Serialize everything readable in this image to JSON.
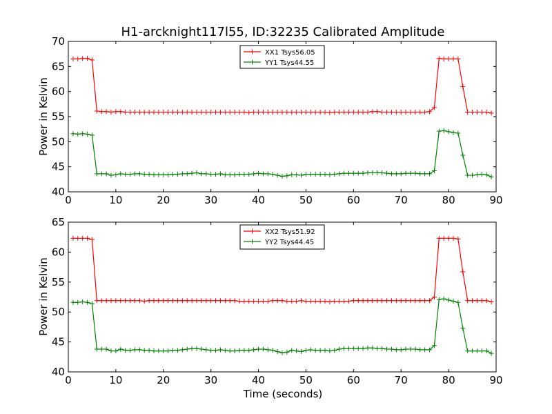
{
  "chart_data": [
    {
      "type": "line",
      "title": "H1-arcknight117l55, ID:32235 Calibrated Amplitude",
      "xlabel": "",
      "ylabel": "Power in Kelvin",
      "xlim": [
        0,
        90
      ],
      "ylim": [
        40,
        70
      ],
      "xticks": [
        0,
        10,
        20,
        30,
        40,
        50,
        60,
        70,
        80,
        90
      ],
      "yticks": [
        40,
        45,
        50,
        55,
        60,
        65,
        70
      ],
      "legend_position": "top-center",
      "marker": "plus",
      "series": [
        {
          "name": "XX1 Tsys56.05",
          "color": "#ff0000",
          "x": [
            1,
            2,
            3,
            4,
            5,
            6,
            7,
            8,
            9,
            10,
            11,
            12,
            13,
            14,
            15,
            16,
            17,
            18,
            19,
            20,
            21,
            22,
            23,
            24,
            25,
            26,
            27,
            28,
            29,
            30,
            31,
            32,
            33,
            34,
            35,
            36,
            37,
            38,
            39,
            40,
            41,
            42,
            43,
            44,
            45,
            46,
            47,
            48,
            49,
            50,
            51,
            52,
            53,
            54,
            55,
            56,
            57,
            58,
            59,
            60,
            61,
            62,
            63,
            64,
            65,
            66,
            67,
            68,
            69,
            70,
            71,
            72,
            73,
            74,
            75,
            76,
            77,
            78,
            79,
            80,
            81,
            82,
            83,
            84,
            85,
            86,
            87,
            88,
            89
          ],
          "y": [
            66.5,
            66.5,
            66.6,
            66.6,
            66.3,
            56.1,
            56.0,
            56.0,
            55.9,
            56.0,
            56.0,
            55.9,
            55.9,
            55.9,
            55.9,
            55.9,
            55.9,
            55.9,
            55.9,
            55.9,
            55.9,
            55.9,
            55.9,
            55.9,
            55.9,
            55.9,
            55.9,
            55.9,
            55.9,
            55.9,
            55.9,
            55.9,
            55.9,
            55.9,
            55.9,
            55.9,
            55.9,
            55.8,
            55.9,
            55.9,
            55.9,
            55.9,
            55.9,
            55.9,
            55.9,
            55.9,
            55.9,
            55.9,
            55.9,
            55.9,
            55.9,
            55.9,
            55.9,
            55.9,
            55.8,
            55.9,
            55.9,
            55.9,
            55.9,
            55.9,
            55.9,
            55.9,
            55.9,
            56.0,
            56.0,
            55.9,
            55.9,
            55.9,
            55.9,
            55.9,
            55.9,
            55.9,
            55.9,
            55.9,
            55.9,
            56.0,
            56.8,
            66.6,
            66.5,
            66.5,
            66.5,
            66.5,
            61.0,
            55.9,
            55.9,
            55.9,
            55.9,
            55.9,
            55.7
          ]
        },
        {
          "name": "YY1 Tsys44.55",
          "color": "#008000",
          "x": [
            1,
            2,
            3,
            4,
            5,
            6,
            7,
            8,
            9,
            10,
            11,
            12,
            13,
            14,
            15,
            16,
            17,
            18,
            19,
            20,
            21,
            22,
            23,
            24,
            25,
            26,
            27,
            28,
            29,
            30,
            31,
            32,
            33,
            34,
            35,
            36,
            37,
            38,
            39,
            40,
            41,
            42,
            43,
            44,
            45,
            46,
            47,
            48,
            49,
            50,
            51,
            52,
            53,
            54,
            55,
            56,
            57,
            58,
            59,
            60,
            61,
            62,
            63,
            64,
            65,
            66,
            67,
            68,
            69,
            70,
            71,
            72,
            73,
            74,
            75,
            76,
            77,
            78,
            79,
            80,
            81,
            82,
            83,
            84,
            85,
            86,
            87,
            88,
            89
          ],
          "y": [
            51.6,
            51.5,
            51.6,
            51.5,
            51.3,
            43.6,
            43.6,
            43.6,
            43.3,
            43.4,
            43.6,
            43.5,
            43.5,
            43.6,
            43.6,
            43.5,
            43.5,
            43.4,
            43.4,
            43.4,
            43.4,
            43.5,
            43.5,
            43.6,
            43.6,
            43.7,
            43.8,
            43.6,
            43.6,
            43.5,
            43.5,
            43.6,
            43.4,
            43.4,
            43.4,
            43.5,
            43.5,
            43.5,
            43.6,
            43.7,
            43.6,
            43.6,
            43.5,
            43.3,
            43.1,
            43.2,
            43.4,
            43.4,
            43.3,
            43.5,
            43.5,
            43.5,
            43.5,
            43.5,
            43.4,
            43.5,
            43.6,
            43.7,
            43.7,
            43.7,
            43.7,
            43.7,
            43.8,
            43.8,
            43.8,
            43.8,
            43.7,
            43.6,
            43.6,
            43.6,
            43.7,
            43.7,
            43.7,
            43.6,
            43.6,
            43.6,
            44.2,
            52.1,
            52.2,
            52.0,
            51.8,
            51.7,
            47.3,
            43.3,
            43.3,
            43.4,
            43.5,
            43.4,
            43.0
          ]
        }
      ]
    },
    {
      "type": "line",
      "title": "",
      "xlabel": "Time (seconds)",
      "ylabel": "Power in Kelvin",
      "xlim": [
        0,
        90
      ],
      "ylim": [
        40,
        65
      ],
      "xticks": [
        0,
        10,
        20,
        30,
        40,
        50,
        60,
        70,
        80,
        90
      ],
      "yticks": [
        40,
        45,
        50,
        55,
        60,
        65
      ],
      "legend_position": "top-center",
      "marker": "plus",
      "series": [
        {
          "name": "XX2 Tsys51.92",
          "color": "#ff0000",
          "x": [
            1,
            2,
            3,
            4,
            5,
            6,
            7,
            8,
            9,
            10,
            11,
            12,
            13,
            14,
            15,
            16,
            17,
            18,
            19,
            20,
            21,
            22,
            23,
            24,
            25,
            26,
            27,
            28,
            29,
            30,
            31,
            32,
            33,
            34,
            35,
            36,
            37,
            38,
            39,
            40,
            41,
            42,
            43,
            44,
            45,
            46,
            47,
            48,
            49,
            50,
            51,
            52,
            53,
            54,
            55,
            56,
            57,
            58,
            59,
            60,
            61,
            62,
            63,
            64,
            65,
            66,
            67,
            68,
            69,
            70,
            71,
            72,
            73,
            74,
            75,
            76,
            77,
            78,
            79,
            80,
            81,
            82,
            83,
            84,
            85,
            86,
            87,
            88,
            89
          ],
          "y": [
            62.3,
            62.3,
            62.3,
            62.3,
            62.1,
            51.9,
            51.9,
            51.9,
            51.9,
            51.9,
            51.9,
            51.9,
            51.9,
            51.9,
            51.9,
            51.8,
            51.9,
            51.9,
            51.9,
            51.9,
            51.9,
            51.9,
            51.9,
            51.9,
            51.9,
            51.9,
            51.9,
            51.9,
            51.9,
            51.9,
            51.9,
            51.9,
            51.9,
            51.9,
            51.9,
            51.8,
            51.8,
            51.8,
            51.8,
            51.8,
            51.8,
            51.8,
            51.9,
            51.9,
            51.9,
            51.8,
            51.8,
            51.8,
            51.9,
            51.8,
            51.8,
            51.8,
            51.8,
            51.8,
            51.7,
            51.8,
            51.8,
            51.8,
            51.8,
            51.9,
            51.9,
            51.9,
            51.9,
            51.9,
            51.9,
            51.9,
            51.9,
            51.9,
            51.9,
            51.9,
            51.9,
            51.9,
            51.9,
            51.9,
            51.9,
            51.9,
            52.5,
            62.3,
            62.3,
            62.3,
            62.3,
            62.2,
            56.7,
            51.9,
            51.9,
            51.9,
            51.9,
            51.9,
            51.7
          ]
        },
        {
          "name": "YY2 Tsys44.45",
          "color": "#008000",
          "x": [
            1,
            2,
            3,
            4,
            5,
            6,
            7,
            8,
            9,
            10,
            11,
            12,
            13,
            14,
            15,
            16,
            17,
            18,
            19,
            20,
            21,
            22,
            23,
            24,
            25,
            26,
            27,
            28,
            29,
            30,
            31,
            32,
            33,
            34,
            35,
            36,
            37,
            38,
            39,
            40,
            41,
            42,
            43,
            44,
            45,
            46,
            47,
            48,
            49,
            50,
            51,
            52,
            53,
            54,
            55,
            56,
            57,
            58,
            59,
            60,
            61,
            62,
            63,
            64,
            65,
            66,
            67,
            68,
            69,
            70,
            71,
            72,
            73,
            74,
            75,
            76,
            77,
            78,
            79,
            80,
            81,
            82,
            83,
            84,
            85,
            86,
            87,
            88,
            89
          ],
          "y": [
            51.6,
            51.6,
            51.7,
            51.6,
            51.4,
            43.8,
            43.8,
            43.8,
            43.5,
            43.5,
            43.8,
            43.6,
            43.6,
            43.7,
            43.7,
            43.6,
            43.6,
            43.5,
            43.5,
            43.5,
            43.5,
            43.6,
            43.6,
            43.7,
            43.8,
            43.9,
            43.9,
            43.8,
            43.7,
            43.6,
            43.6,
            43.7,
            43.6,
            43.5,
            43.5,
            43.6,
            43.6,
            43.6,
            43.7,
            43.8,
            43.8,
            43.7,
            43.6,
            43.4,
            43.2,
            43.3,
            43.6,
            43.5,
            43.4,
            43.6,
            43.7,
            43.6,
            43.6,
            43.6,
            43.5,
            43.6,
            43.8,
            43.9,
            43.9,
            43.9,
            43.9,
            43.9,
            44.0,
            44.0,
            43.9,
            43.9,
            43.8,
            43.8,
            43.7,
            43.7,
            43.8,
            43.8,
            43.8,
            43.7,
            43.7,
            43.7,
            44.4,
            52.1,
            52.2,
            52.0,
            51.8,
            51.6,
            47.3,
            43.5,
            43.5,
            43.5,
            43.5,
            43.5,
            43.1
          ]
        }
      ]
    }
  ]
}
